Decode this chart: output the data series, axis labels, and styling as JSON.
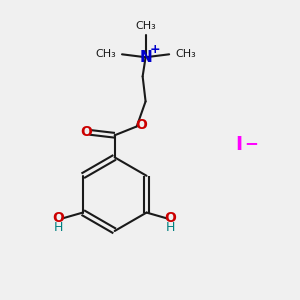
{
  "bg_color": "#f0f0f0",
  "bond_color": "#1a1a1a",
  "oxygen_color": "#cc0000",
  "nitrogen_color": "#0000cc",
  "iodide_color": "#ff00ff",
  "h_color": "#008080",
  "plus_color": "#0000cc",
  "line_width": 1.5,
  "figsize": [
    3.0,
    3.0
  ],
  "dpi": 100,
  "xlim": [
    0,
    10
  ],
  "ylim": [
    0,
    10
  ]
}
